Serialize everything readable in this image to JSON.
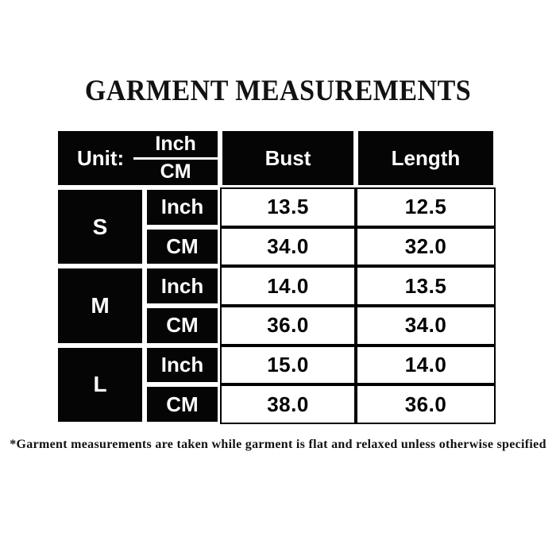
{
  "title": "GARMENT MEASUREMENTS",
  "footnote": "*Garment measurements are taken while garment is flat and relaxed unless otherwise specified",
  "table": {
    "header": {
      "unit_label": "Unit:",
      "unit_top": "Inch",
      "unit_bottom": "CM",
      "col_bust": "Bust",
      "col_length": "Length"
    },
    "rows": [
      {
        "size": "S",
        "inch_label": "Inch",
        "cm_label": "CM",
        "inch": {
          "bust": "13.5",
          "length": "12.5"
        },
        "cm": {
          "bust": "34.0",
          "length": "32.0"
        }
      },
      {
        "size": "M",
        "inch_label": "Inch",
        "cm_label": "CM",
        "inch": {
          "bust": "14.0",
          "length": "13.5"
        },
        "cm": {
          "bust": "36.0",
          "length": "34.0"
        }
      },
      {
        "size": "L",
        "inch_label": "Inch",
        "cm_label": "CM",
        "inch": {
          "bust": "15.0",
          "length": "14.0"
        },
        "cm": {
          "bust": "38.0",
          "length": "36.0"
        }
      }
    ]
  },
  "colors": {
    "page_bg": "#ffffff",
    "cell_bg": "#050505",
    "cell_text": "#ffffff",
    "data_text": "#000000"
  }
}
